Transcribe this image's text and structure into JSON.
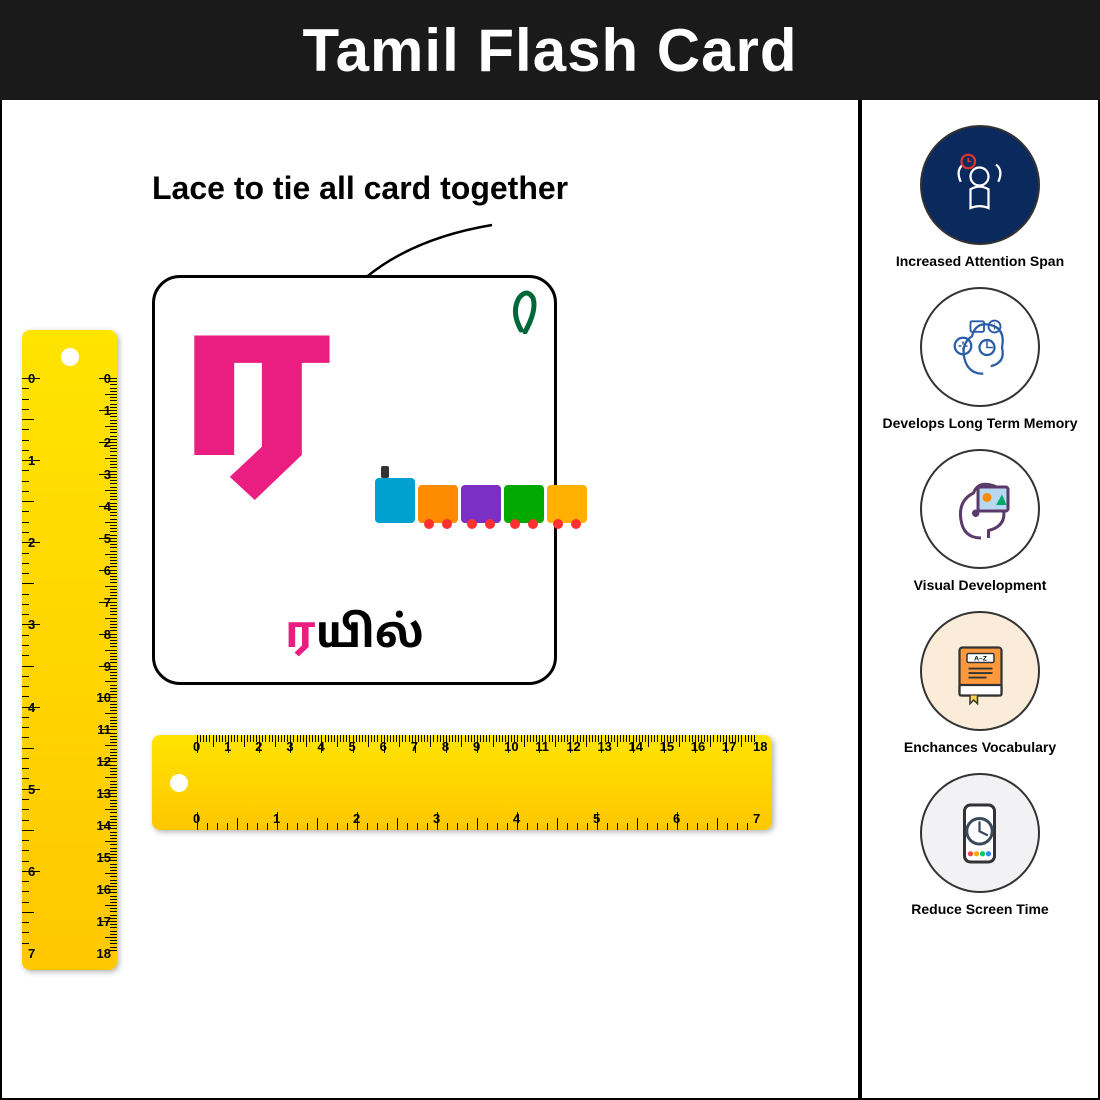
{
  "header": {
    "title": "Tamil Flash Card"
  },
  "lace": {
    "label": "Lace to tie all card together"
  },
  "card": {
    "letter": "ர",
    "letter_color": "#e91e80",
    "word_first": "ர",
    "word_rest": "யில்",
    "border_radius": 28
  },
  "train": {
    "engine_color": "#00a0d0",
    "wagon_colors": [
      "#ff8c00",
      "#7b2fc4",
      "#00a800",
      "#ffb000"
    ]
  },
  "ruler": {
    "bg_top": "#ffe400",
    "bg_bot": "#ffc700",
    "v_cm": [
      0,
      1,
      2,
      3,
      4,
      5,
      6,
      7,
      8,
      9,
      10,
      11,
      12,
      13,
      14,
      15,
      16,
      17,
      18
    ],
    "v_in": [
      0,
      1,
      2,
      3,
      4,
      5,
      6,
      7
    ],
    "h_cm": [
      0,
      1,
      2,
      3,
      4,
      5,
      6,
      7,
      8,
      9,
      10,
      11,
      12,
      13,
      14,
      15,
      16,
      17,
      18
    ],
    "h_in": [
      0,
      1,
      2,
      3,
      4,
      5,
      6,
      7
    ],
    "cm_count": 18,
    "in_count": 7
  },
  "benefits": [
    {
      "label": "Increased Attention Span",
      "bg": "#0a2a5e",
      "icon": "attention"
    },
    {
      "label": "Develops Long Term Memory",
      "bg": "#ffffff",
      "icon": "memory"
    },
    {
      "label": "Visual Development",
      "bg": "#ffffff",
      "icon": "visual"
    },
    {
      "label": "Enchances Vocabulary",
      "bg": "#faecd8",
      "icon": "book"
    },
    {
      "label": "Reduce Screen Time",
      "bg": "#f2f2f4",
      "icon": "phone"
    }
  ],
  "colors": {
    "header_bg": "#1a1a1a",
    "header_fg": "#ffffff",
    "border": "#000000"
  }
}
